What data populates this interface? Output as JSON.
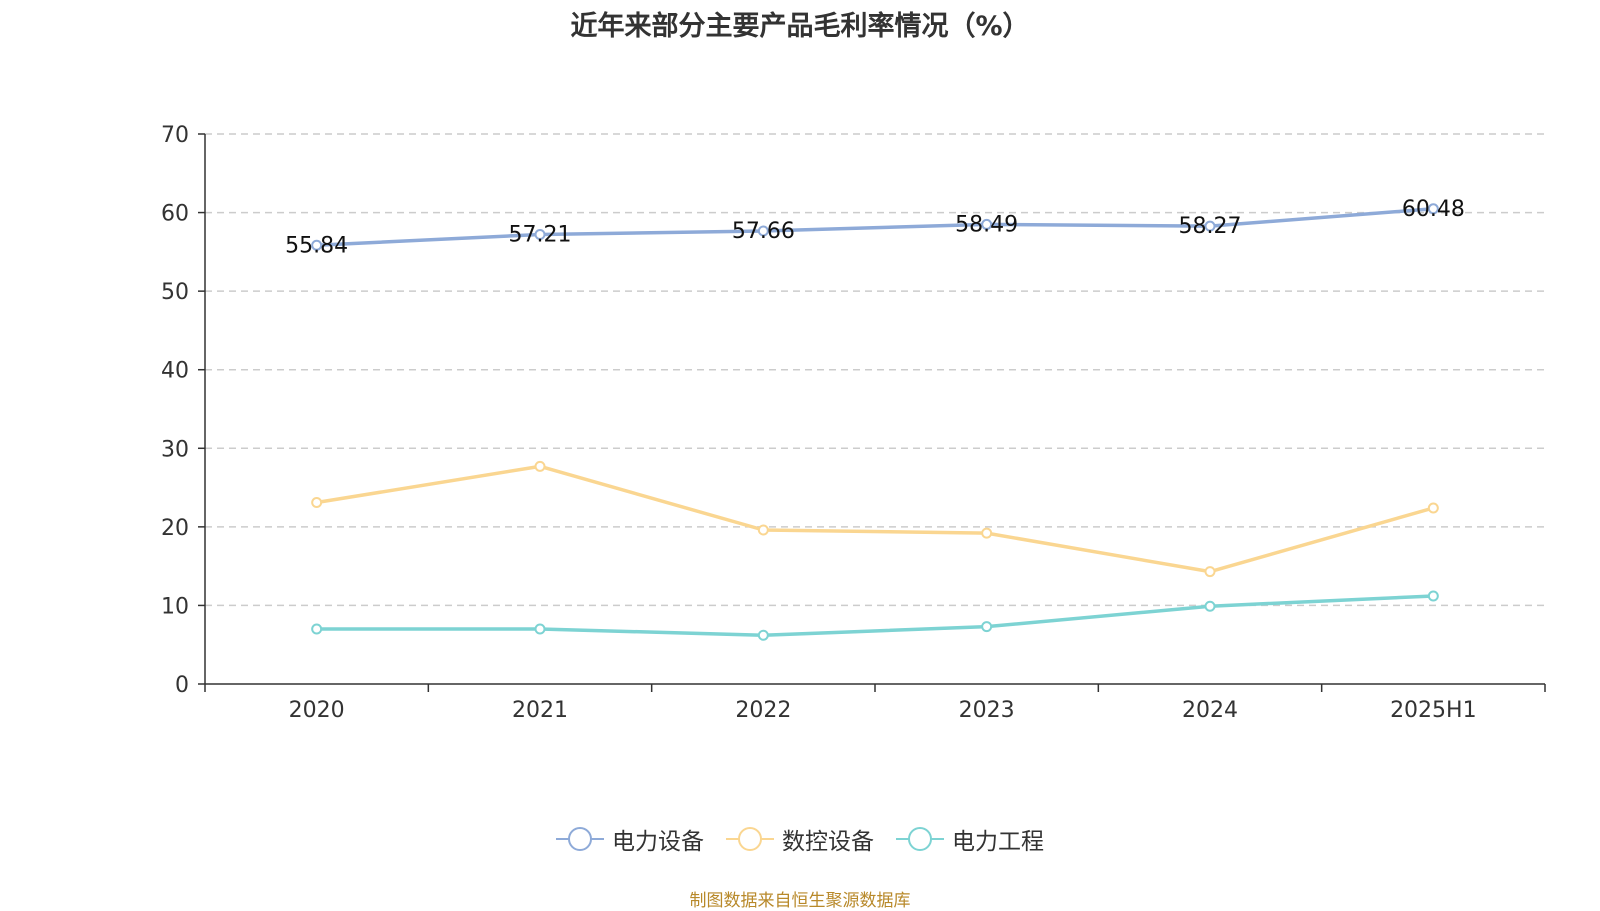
{
  "chart_data": {
    "type": "line",
    "title": "近年来部分主要产品毛利率情况（%）",
    "categories": [
      "2020",
      "2021",
      "2022",
      "2023",
      "2024",
      "2025H1"
    ],
    "ylim": [
      0,
      70
    ],
    "yticks": [
      0,
      10,
      20,
      30,
      40,
      50,
      60,
      70
    ],
    "grid": true,
    "legend_position": "bottom",
    "series": [
      {
        "name": "电力设备",
        "color": "#8eaad8",
        "values": [
          55.84,
          57.21,
          57.66,
          58.49,
          58.27,
          60.48
        ],
        "show_labels": true
      },
      {
        "name": "数控设备",
        "color": "#fad691",
        "values": [
          23.1,
          27.7,
          19.6,
          19.2,
          14.3,
          22.4
        ],
        "show_labels": false
      },
      {
        "name": "电力工程",
        "color": "#7dd3d3",
        "values": [
          7.0,
          7.0,
          6.2,
          7.3,
          9.9,
          11.2
        ],
        "show_labels": false
      }
    ]
  },
  "source": "制图数据来自恒生聚源数据库"
}
